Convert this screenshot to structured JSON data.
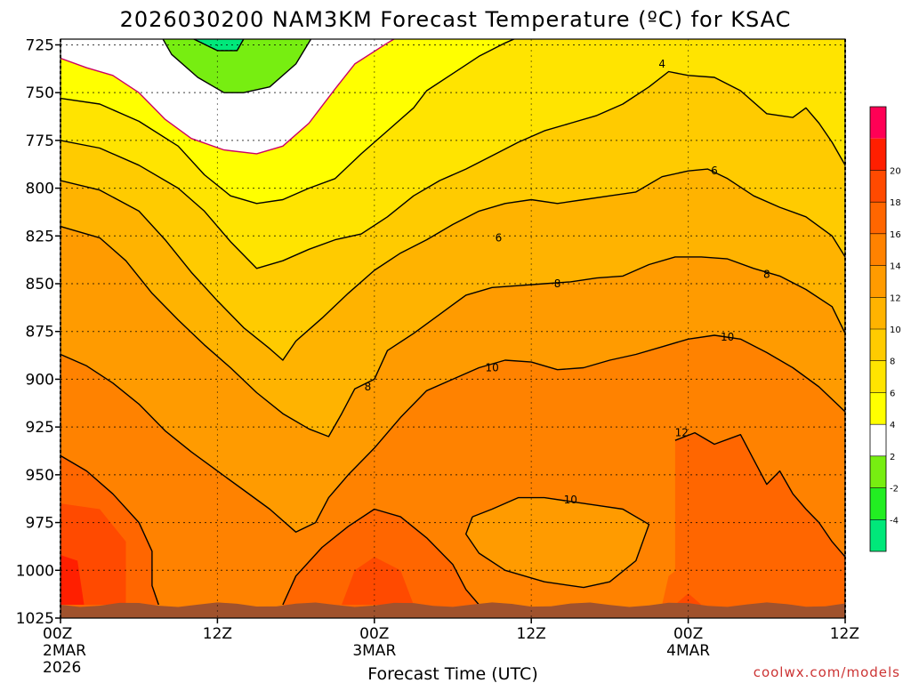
{
  "title": "2026030200 NAM3KM Forecast Temperature (ºC) for KSAC",
  "credit": "coolwx.com/models",
  "chart_data": {
    "type": "heatmap",
    "title": "2026030200 NAM3KM Forecast Temperature (ºC) for KSAC",
    "xlabel": "Forecast Time (UTC)",
    "ylabel": "",
    "x_ticks": [
      {
        "hour": 0,
        "label": "00Z",
        "sub1": "2MAR",
        "sub2": "2026"
      },
      {
        "hour": 12,
        "label": "12Z",
        "sub1": "",
        "sub2": ""
      },
      {
        "hour": 24,
        "label": "00Z",
        "sub1": "3MAR",
        "sub2": ""
      },
      {
        "hour": 36,
        "label": "12Z",
        "sub1": "",
        "sub2": ""
      },
      {
        "hour": 48,
        "label": "00Z",
        "sub1": "4MAR",
        "sub2": ""
      },
      {
        "hour": 60,
        "label": "12Z",
        "sub1": "",
        "sub2": ""
      }
    ],
    "y_ticks": [
      725,
      750,
      775,
      800,
      825,
      850,
      875,
      900,
      925,
      950,
      975,
      1000,
      1025
    ],
    "xlim": [
      0,
      60
    ],
    "ylim": [
      1025,
      722
    ],
    "colorbar": {
      "levels": [
        -6,
        -4,
        -2,
        2,
        4,
        6,
        8,
        10,
        12,
        14,
        16,
        18,
        20,
        22
      ],
      "tick_labels": [
        -4,
        -2,
        2,
        4,
        6,
        8,
        10,
        12,
        14,
        16,
        18,
        20
      ],
      "colors": [
        "#00e87a",
        "#22ee22",
        "#77ee11",
        "#ffffff",
        "#ffff00",
        "#ffe400",
        "#ffcb00",
        "#ffb300",
        "#ff9b00",
        "#ff8200",
        "#ff6600",
        "#ff4a00",
        "#ff1f00",
        "#ff0055"
      ]
    },
    "series": [
      {
        "name": "-4",
        "points": [
          [
            14,
            722
          ],
          [
            13.5,
            728
          ],
          [
            12,
            728
          ],
          [
            10.5,
            723
          ],
          [
            9,
            718
          ],
          [
            14,
            718
          ]
        ]
      },
      {
        "name": "-2",
        "points": [
          [
            7.5,
            718
          ],
          [
            8.5,
            730
          ],
          [
            10.5,
            742
          ],
          [
            12.5,
            750
          ],
          [
            14,
            750
          ],
          [
            16,
            747
          ],
          [
            18,
            735
          ],
          [
            19.5,
            718
          ]
        ]
      },
      {
        "name": "0",
        "points": [
          [
            0,
            732
          ],
          [
            2,
            737
          ],
          [
            4,
            741
          ],
          [
            6,
            750
          ],
          [
            8,
            764
          ],
          [
            10,
            774
          ],
          [
            12.5,
            780
          ],
          [
            15,
            782
          ],
          [
            17,
            778
          ],
          [
            19,
            766
          ],
          [
            21,
            748
          ],
          [
            22.5,
            735
          ],
          [
            25,
            724
          ],
          [
            26,
            720
          ]
        ]
      },
      {
        "name": "2",
        "points": [
          [
            0,
            753
          ],
          [
            3,
            756
          ],
          [
            6,
            765
          ],
          [
            9,
            778
          ],
          [
            11,
            793
          ],
          [
            13,
            804
          ],
          [
            15,
            808
          ],
          [
            17,
            806
          ],
          [
            19,
            800
          ],
          [
            21,
            795
          ],
          [
            23,
            782
          ],
          [
            25,
            770
          ],
          [
            27,
            758
          ],
          [
            28,
            749
          ],
          [
            30,
            740
          ],
          [
            32,
            731
          ],
          [
            34,
            724
          ],
          [
            35,
            721
          ]
        ]
      },
      {
        "name": "4",
        "points": [
          [
            0,
            775
          ],
          [
            3,
            779
          ],
          [
            6,
            788
          ],
          [
            9,
            800
          ],
          [
            11,
            812
          ],
          [
            13,
            828
          ],
          [
            15,
            842
          ],
          [
            17,
            838
          ],
          [
            19,
            832
          ],
          [
            21,
            827
          ],
          [
            23,
            824
          ],
          [
            25,
            815
          ],
          [
            27,
            804
          ],
          [
            29,
            796
          ],
          [
            31,
            790
          ],
          [
            33,
            783
          ],
          [
            35,
            776
          ],
          [
            37,
            770
          ],
          [
            39,
            766
          ],
          [
            41,
            762
          ],
          [
            43,
            756
          ],
          [
            45,
            747
          ],
          [
            46.5,
            739
          ],
          [
            48,
            741
          ],
          [
            50,
            742
          ],
          [
            52,
            749
          ],
          [
            54,
            761
          ],
          [
            56,
            763
          ],
          [
            57,
            758
          ],
          [
            58,
            766
          ],
          [
            59,
            776
          ],
          [
            60,
            788
          ]
        ]
      },
      {
        "name": "6",
        "points": [
          [
            0,
            796
          ],
          [
            3,
            801
          ],
          [
            6,
            812
          ],
          [
            8,
            827
          ],
          [
            10,
            844
          ],
          [
            12,
            859
          ],
          [
            14,
            873
          ],
          [
            16,
            884
          ],
          [
            17,
            890
          ],
          [
            18,
            880
          ],
          [
            20,
            868
          ],
          [
            22,
            855
          ],
          [
            24,
            843
          ],
          [
            26,
            834
          ],
          [
            28,
            827
          ],
          [
            30,
            819
          ],
          [
            32,
            812
          ],
          [
            34,
            808
          ],
          [
            36,
            806
          ],
          [
            38,
            808
          ],
          [
            40,
            806
          ],
          [
            42,
            804
          ],
          [
            44,
            802
          ],
          [
            46,
            794
          ],
          [
            48,
            791
          ],
          [
            49.5,
            790
          ],
          [
            51,
            795
          ],
          [
            53,
            804
          ],
          [
            55,
            810
          ],
          [
            57,
            815
          ],
          [
            59,
            825
          ],
          [
            60,
            836
          ]
        ]
      },
      {
        "name": "8",
        "points": [
          [
            0,
            820
          ],
          [
            3,
            826
          ],
          [
            5,
            838
          ],
          [
            7,
            855
          ],
          [
            9,
            869
          ],
          [
            11,
            882
          ],
          [
            13,
            894
          ],
          [
            15,
            907
          ],
          [
            17,
            918
          ],
          [
            19,
            926
          ],
          [
            20.5,
            930
          ],
          [
            21.5,
            918
          ],
          [
            22.5,
            905
          ],
          [
            24,
            900
          ],
          [
            25,
            885
          ],
          [
            27,
            876
          ],
          [
            29,
            866
          ],
          [
            31,
            856
          ],
          [
            33,
            852
          ],
          [
            35,
            851
          ],
          [
            37,
            850
          ],
          [
            39,
            849
          ],
          [
            41,
            847
          ],
          [
            43,
            846
          ],
          [
            45,
            840
          ],
          [
            47,
            836
          ],
          [
            49,
            836
          ],
          [
            51,
            837
          ],
          [
            53,
            842
          ],
          [
            55,
            846
          ],
          [
            57,
            853
          ],
          [
            59,
            862
          ],
          [
            60,
            876
          ]
        ]
      },
      {
        "name": "10",
        "points": [
          [
            0,
            887
          ],
          [
            2,
            893
          ],
          [
            4,
            902
          ],
          [
            6,
            913
          ],
          [
            8,
            927
          ],
          [
            10,
            938
          ],
          [
            12,
            948
          ],
          [
            14,
            958
          ],
          [
            16,
            968
          ],
          [
            18,
            980
          ],
          [
            19.5,
            975
          ],
          [
            20.5,
            962
          ],
          [
            22,
            950
          ],
          [
            24,
            936
          ],
          [
            26,
            920
          ],
          [
            28,
            906
          ],
          [
            30,
            900
          ],
          [
            32,
            894
          ],
          [
            34,
            890
          ],
          [
            36,
            891
          ],
          [
            38,
            895
          ],
          [
            40,
            894
          ],
          [
            42,
            890
          ],
          [
            44,
            887
          ],
          [
            46,
            883
          ],
          [
            48,
            879
          ],
          [
            50,
            877
          ],
          [
            52,
            879
          ],
          [
            54,
            886
          ],
          [
            56,
            894
          ],
          [
            58,
            904
          ],
          [
            60,
            917
          ]
        ]
      },
      {
        "name": "12",
        "points": [
          [
            47,
            932
          ],
          [
            48.5,
            928
          ],
          [
            50,
            934
          ],
          [
            52,
            929
          ],
          [
            53,
            942
          ],
          [
            54,
            955
          ],
          [
            55,
            948
          ],
          [
            56,
            960
          ],
          [
            57,
            968
          ],
          [
            58,
            975
          ],
          [
            59,
            985
          ],
          [
            60,
            993
          ]
        ]
      },
      {
        "name": "10b",
        "points": [
          [
            31.5,
            972
          ],
          [
            33,
            968
          ],
          [
            35,
            962
          ],
          [
            37,
            962
          ],
          [
            39,
            964
          ],
          [
            41,
            966
          ],
          [
            43,
            968
          ],
          [
            45,
            976
          ],
          [
            44,
            995
          ],
          [
            42,
            1006
          ],
          [
            40,
            1009
          ],
          [
            37,
            1006
          ],
          [
            34,
            1000
          ],
          [
            32,
            991
          ],
          [
            31,
            981
          ],
          [
            31.5,
            972
          ]
        ]
      },
      {
        "name": "12b",
        "points": [
          [
            0,
            940
          ],
          [
            2,
            948
          ],
          [
            4,
            960
          ],
          [
            6,
            975
          ],
          [
            7,
            990
          ],
          [
            7,
            1008
          ],
          [
            7.5,
            1018
          ]
        ]
      },
      {
        "name": "12c",
        "points": [
          [
            17,
            1018
          ],
          [
            18,
            1003
          ],
          [
            20,
            988
          ],
          [
            22,
            977
          ],
          [
            24,
            968
          ],
          [
            26,
            972
          ],
          [
            28,
            983
          ],
          [
            30,
            997
          ],
          [
            31,
            1010
          ],
          [
            32,
            1018
          ]
        ]
      }
    ]
  }
}
